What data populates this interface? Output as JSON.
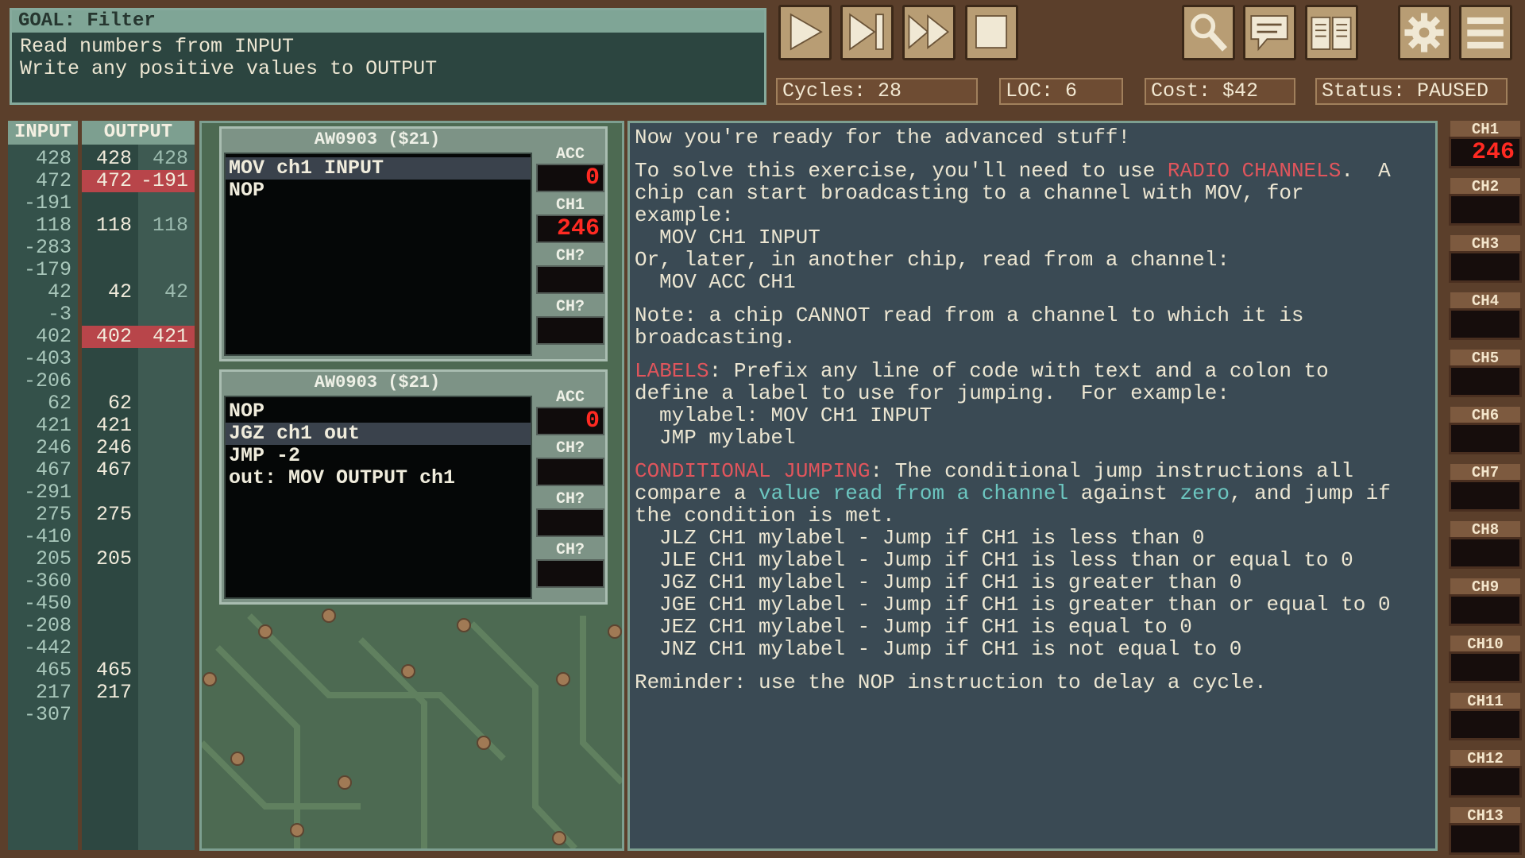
{
  "goal": {
    "title": "GOAL: Filter",
    "lines": [
      "Read numbers from INPUT",
      "Write any positive values to OUTPUT"
    ]
  },
  "status": {
    "cycles": "Cycles: 28",
    "loc": "LOC: 6",
    "cost": "Cost: $42",
    "state": "Status: PAUSED"
  },
  "io": {
    "input_header": "INPUT",
    "output_header": "OUTPUT",
    "rows": [
      [
        428,
        428,
        428
      ],
      [
        472,
        472,
        -191
      ],
      [
        -191,
        null,
        null
      ],
      [
        118,
        118,
        118
      ],
      [
        -283,
        null,
        null
      ],
      [
        -179,
        null,
        null
      ],
      [
        42,
        42,
        42
      ],
      [
        -3,
        null,
        null
      ],
      [
        402,
        402,
        421
      ],
      [
        -403,
        null,
        null
      ],
      [
        -206,
        null,
        null
      ],
      [
        62,
        62,
        null
      ],
      [
        421,
        421,
        null
      ],
      [
        246,
        246,
        null
      ],
      [
        467,
        467,
        null
      ],
      [
        -291,
        null,
        null
      ],
      [
        275,
        275,
        null
      ],
      [
        -410,
        null,
        null
      ],
      [
        205,
        205,
        null
      ],
      [
        -360,
        null,
        null
      ],
      [
        -450,
        null,
        null
      ],
      [
        -208,
        null,
        null
      ],
      [
        -442,
        null,
        null
      ],
      [
        465,
        465,
        null
      ],
      [
        217,
        217,
        null
      ],
      [
        -307,
        null,
        null
      ]
    ]
  },
  "chips": [
    {
      "title": "AW0903 ($21)",
      "active_line": 0,
      "code": [
        "MOV ch1 INPUT",
        "NOP"
      ],
      "registers": [
        {
          "label": "ACC",
          "value": 0
        },
        {
          "label": "CH1",
          "value": 246
        },
        {
          "label": "CH?"
        },
        {
          "label": "CH?"
        }
      ]
    },
    {
      "title": "AW0903 ($21)",
      "active_line": 1,
      "code": [
        "NOP",
        "JGZ ch1 out",
        "JMP -2",
        "out: MOV OUTPUT ch1"
      ],
      "registers": [
        {
          "label": "ACC",
          "value": 0
        },
        {
          "label": "CH?"
        },
        {
          "label": "CH?"
        },
        {
          "label": "CH?"
        }
      ]
    }
  ],
  "help": [
    [
      {
        "segments": [
          {
            "text": "Now you're ready for the advanced stuff!"
          }
        ]
      }
    ],
    [
      {
        "segments": [
          {
            "text": "To solve this exercise, you'll need to use "
          },
          {
            "text": "RADIO CHANNELS",
            "color": "#e0555c"
          },
          {
            "text": ".  A chip can start broadcasting to a channel with MOV, for example:"
          }
        ]
      },
      {
        "code": "MOV CH1 INPUT"
      },
      {
        "segments": [
          {
            "text": "Or, later, in another chip, read from a channel:"
          }
        ]
      },
      {
        "code": "MOV ACC CH1"
      }
    ],
    [
      {
        "segments": [
          {
            "text": "Note: a chip CANNOT read from a channel to which it is broadcasting."
          }
        ]
      }
    ],
    [
      {
        "segments": [
          {
            "text": "LABELS",
            "color": "#e0555c"
          },
          {
            "text": ": Prefix any line of code with text and a colon to define a label to use for jumping.  For example:"
          }
        ]
      },
      {
        "code": "mylabel: MOV CH1 INPUT"
      },
      {
        "code": "JMP mylabel"
      }
    ],
    [
      {
        "segments": [
          {
            "text": "CONDITIONAL JUMPING",
            "color": "#e0555c"
          },
          {
            "text": ": The conditional jump instructions all compare a "
          },
          {
            "text": "value read from a channel",
            "color": "#6cc6c0"
          },
          {
            "text": " against "
          },
          {
            "text": "zero",
            "color": "#6cc6c0"
          },
          {
            "text": ", and jump if the condition is met."
          }
        ]
      },
      {
        "code": "JLZ CH1 mylabel - Jump if CH1 is less than 0"
      },
      {
        "code": "JLE CH1 mylabel - Jump if CH1 is less than or equal to 0"
      },
      {
        "code": "JGZ CH1 mylabel - Jump if CH1 is greater than 0"
      },
      {
        "code": "JGE CH1 mylabel - Jump if CH1 is greater than or equal to 0"
      },
      {
        "code": "JEZ CH1 mylabel - Jump if CH1 is equal to 0"
      },
      {
        "code": "JNZ CH1 mylabel - Jump if CH1 is not equal to 0"
      }
    ],
    [
      {
        "segments": [
          {
            "text": "Reminder: use the NOP instruction to delay a cycle."
          }
        ]
      }
    ]
  ],
  "channels": [
    {
      "label": "CH1",
      "value": 246
    },
    {
      "label": "CH2"
    },
    {
      "label": "CH3"
    },
    {
      "label": "CH4"
    },
    {
      "label": "CH5"
    },
    {
      "label": "CH6"
    },
    {
      "label": "CH7"
    },
    {
      "label": "CH8"
    },
    {
      "label": "CH9"
    },
    {
      "label": "CH10"
    },
    {
      "label": "CH11"
    },
    {
      "label": "CH12"
    },
    {
      "label": "CH13"
    }
  ]
}
